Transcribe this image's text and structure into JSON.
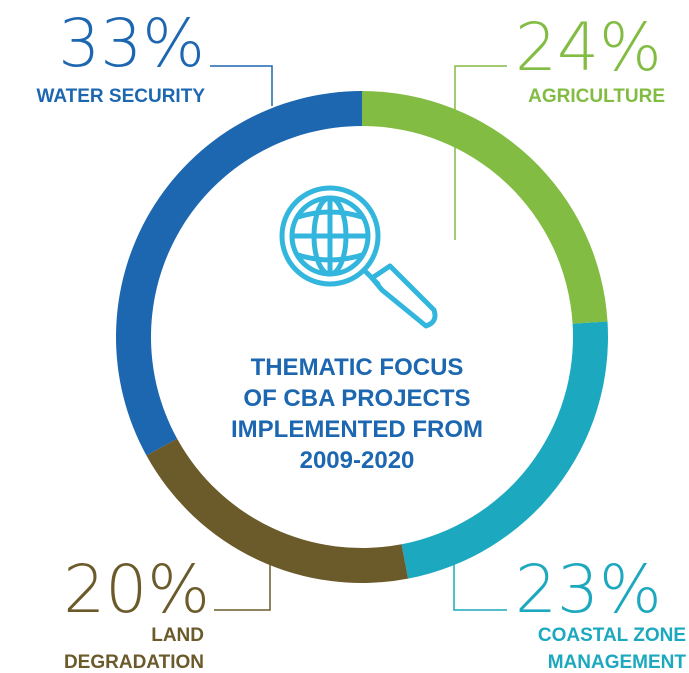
{
  "chart_data": {
    "type": "pie",
    "title": "THEMATIC FOCUS OF CBA PROJECTS IMPLEMENTED FROM 2009-2020",
    "title_lines": [
      "THEMATIC FOCUS",
      "OF CBA PROJECTS",
      "IMPLEMENTED FROM",
      "2009-2020"
    ],
    "slices": [
      {
        "category": "AGRICULTURE",
        "label_lines": [
          "AGRICULTURE"
        ],
        "value": 24,
        "value_label": "24%",
        "color": "#82bc43"
      },
      {
        "category": "COASTAL ZONE MANAGEMENT",
        "label_lines": [
          "COASTAL ZONE",
          "MANAGEMENT"
        ],
        "value": 23,
        "value_label": "23%",
        "color": "#1ca8bf"
      },
      {
        "category": "LAND DEGRADATION",
        "label_lines": [
          "LAND",
          "DEGRADATION"
        ],
        "value": 20,
        "value_label": "20%",
        "color": "#6b5a2a"
      },
      {
        "category": "WATER SECURITY",
        "label_lines": [
          "WATER SECURITY"
        ],
        "value": 33,
        "value_label": "33%",
        "color": "#1d67b1"
      }
    ],
    "donut": true,
    "center_icon": "globe-magnifier-icon",
    "center_icon_color": "#33b6dd",
    "title_color": "#1d67b1"
  }
}
